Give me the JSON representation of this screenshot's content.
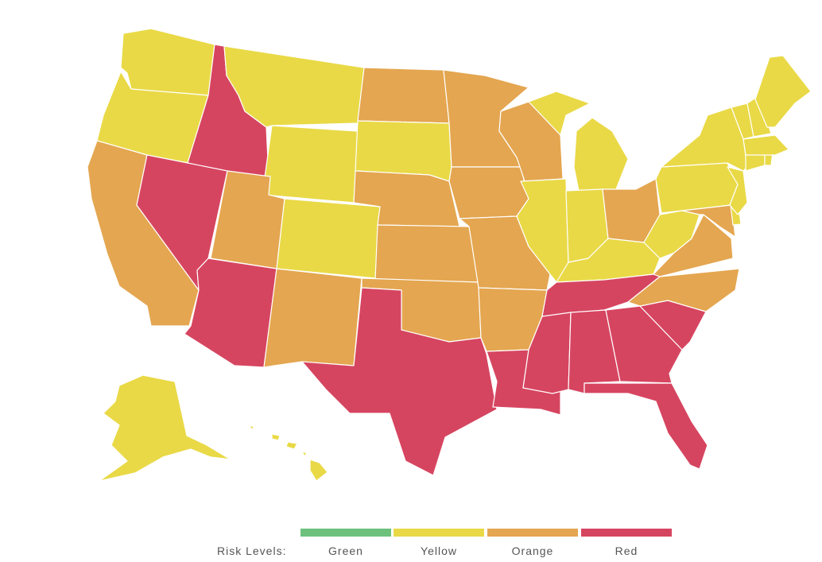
{
  "colors": {
    "Green": "#6cc17c",
    "Yellow": "#e9d946",
    "Orange": "#e4a650",
    "Red": "#d64560"
  },
  "legend": {
    "title": "Risk Levels:",
    "levels": [
      "Green",
      "Yellow",
      "Orange",
      "Red"
    ]
  },
  "states": {
    "WA": "Yellow",
    "OR": "Yellow",
    "CA": "Orange",
    "ID": "Red",
    "NV": "Red",
    "MT": "Yellow",
    "WY": "Yellow",
    "UT": "Orange",
    "AZ": "Red",
    "CO": "Yellow",
    "NM": "Orange",
    "ND": "Orange",
    "SD": "Yellow",
    "NE": "Orange",
    "KS": "Orange",
    "OK": "Orange",
    "TX": "Red",
    "MN": "Orange",
    "IA": "Orange",
    "MO": "Orange",
    "AR": "Orange",
    "LA": "Red",
    "WI": "Orange",
    "IL": "Yellow",
    "MI": "Yellow",
    "IN": "Yellow",
    "OH": "Orange",
    "KY": "Yellow",
    "TN": "Red",
    "MS": "Red",
    "AL": "Red",
    "GA": "Red",
    "FL": "Red",
    "SC": "Red",
    "NC": "Orange",
    "VA": "Orange",
    "WV": "Yellow",
    "MD": "Orange",
    "DE": "Yellow",
    "NJ": "Yellow",
    "PA": "Yellow",
    "NY": "Yellow",
    "CT": "Yellow",
    "RI": "Yellow",
    "MA": "Yellow",
    "VT": "Yellow",
    "NH": "Yellow",
    "ME": "Yellow",
    "AK": "Yellow",
    "HI": "Yellow"
  }
}
